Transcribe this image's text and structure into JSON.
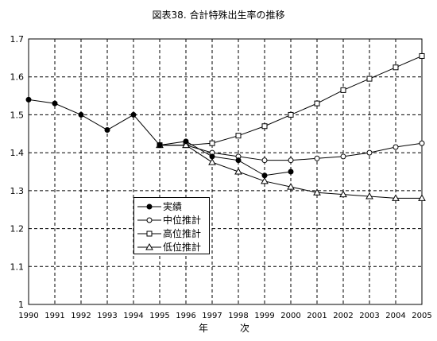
{
  "chart_data": {
    "type": "line",
    "title": "図表38. 合計特殊出生率の推移",
    "xlabel": "年　次",
    "ylabel": "",
    "x": [
      1990,
      1991,
      1992,
      1993,
      1994,
      1995,
      1996,
      1997,
      1998,
      1999,
      2000,
      2001,
      2002,
      2003,
      2004,
      2005
    ],
    "xlim": [
      1990,
      2005
    ],
    "ylim": [
      1.0,
      1.7
    ],
    "yticks": [
      "1",
      "1.1",
      "1.2",
      "1.3",
      "1.4",
      "1.5",
      "1.6",
      "1.7"
    ],
    "grid": true,
    "legend_position": "left-center",
    "series": [
      {
        "name": "実績",
        "marker": "filled-circle",
        "x": [
          1990,
          1991,
          1992,
          1993,
          1994,
          1995,
          1996,
          1997,
          1998,
          1999,
          2000
        ],
        "values": [
          1.54,
          1.53,
          1.5,
          1.46,
          1.5,
          1.42,
          1.43,
          1.39,
          1.38,
          1.34,
          1.35
        ]
      },
      {
        "name": "中位推計",
        "marker": "open-circle",
        "x": [
          1995,
          1996,
          1997,
          1998,
          1999,
          2000,
          2001,
          2002,
          2003,
          2004,
          2005
        ],
        "values": [
          1.42,
          1.42,
          1.4,
          1.39,
          1.38,
          1.38,
          1.385,
          1.39,
          1.4,
          1.415,
          1.425
        ]
      },
      {
        "name": "高位推計",
        "marker": "open-square",
        "x": [
          1995,
          1996,
          1997,
          1998,
          1999,
          2000,
          2001,
          2002,
          2003,
          2004,
          2005
        ],
        "values": [
          1.42,
          1.42,
          1.425,
          1.445,
          1.47,
          1.5,
          1.53,
          1.565,
          1.595,
          1.625,
          1.655
        ]
      },
      {
        "name": "低位推計",
        "marker": "open-triangle",
        "x": [
          1995,
          1996,
          1997,
          1998,
          1999,
          2000,
          2001,
          2002,
          2003,
          2004,
          2005
        ],
        "values": [
          1.42,
          1.42,
          1.375,
          1.35,
          1.325,
          1.31,
          1.295,
          1.29,
          1.285,
          1.28,
          1.28
        ]
      }
    ],
    "colors": {
      "line": "#000000",
      "grid": "#000000",
      "background": "#ffffff"
    }
  }
}
